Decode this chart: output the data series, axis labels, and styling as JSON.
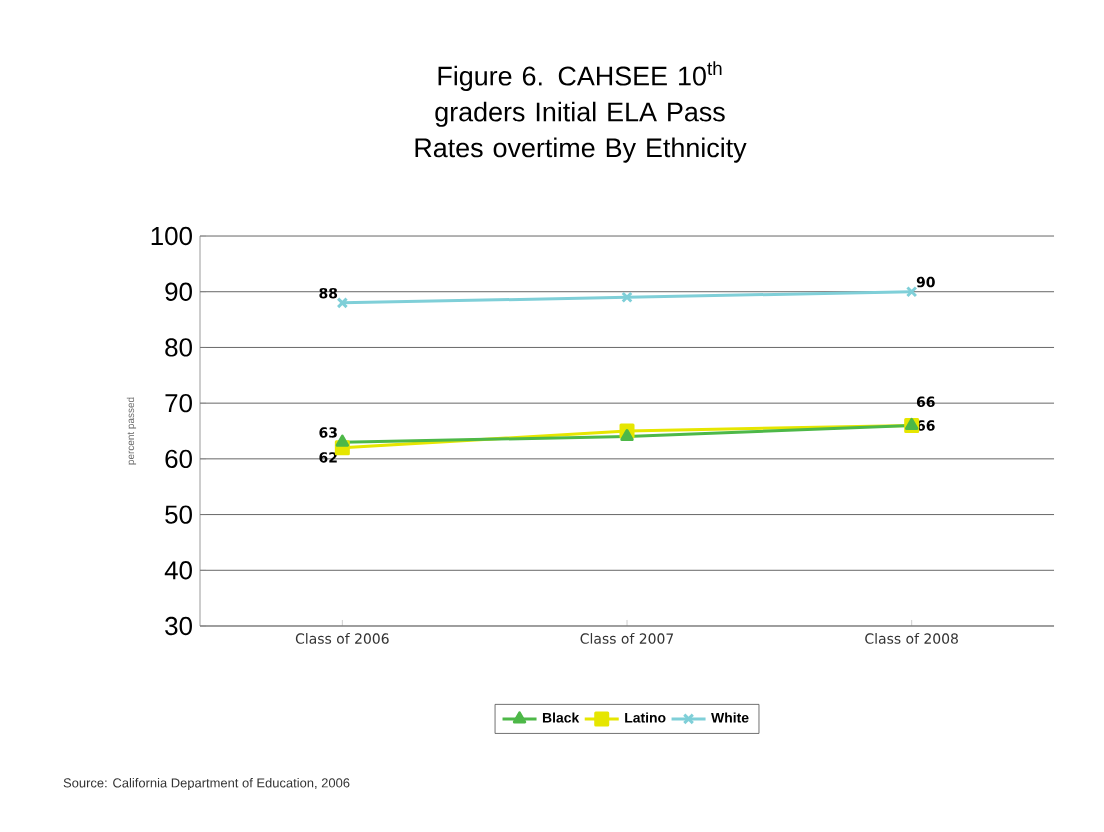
{
  "chart_data": {
    "type": "line",
    "title": "Figure 6. CAHSEE 10$^{th}$ graders Initial ELA Pass Rates overtime By Ethnicity",
    "ylabel": "percent passed",
    "categories": [
      "Class of 2006",
      "Class of 2007",
      "Class of 2008"
    ],
    "series": [
      {
        "name": "Black",
        "color": "#4db848",
        "marker": "triangle",
        "values": [
          63,
          64,
          66
        ],
        "value_labels": [
          "63",
          null,
          "66"
        ]
      },
      {
        "name": "Latino",
        "color": "#e6e600",
        "marker": "square",
        "values": [
          62,
          65,
          66
        ],
        "value_labels": [
          "62",
          null,
          "66"
        ]
      },
      {
        "name": "White",
        "color": "#7fcfd8",
        "marker": "cross",
        "values": [
          88,
          89,
          90
        ],
        "value_labels": [
          "88",
          null,
          "90"
        ]
      }
    ],
    "ylim": [
      30,
      100
    ],
    "yticks": [
      30,
      40,
      50,
      60,
      70,
      80,
      90,
      100
    ],
    "grid": "y",
    "legend": "bottom",
    "line_style": "solid",
    "annotations": [
      "Source: California Department of Education, 2006"
    ]
  }
}
